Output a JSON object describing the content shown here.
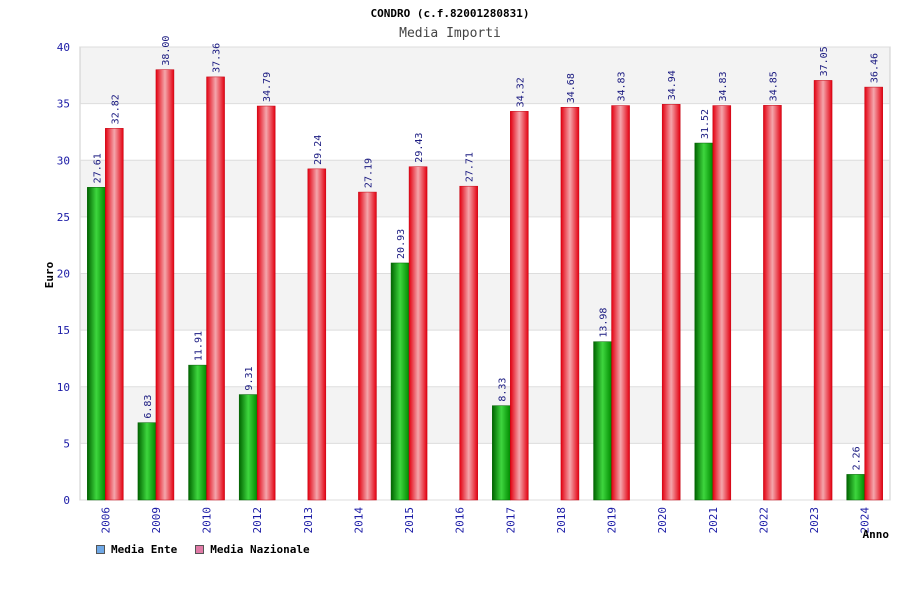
{
  "chart_data": {
    "type": "bar",
    "title": "CONDRO (c.f.82001280831)",
    "subtitle": "Media Importi",
    "xlabel": "Anno",
    "ylabel": "Euro",
    "ylim": [
      0,
      40
    ],
    "yticks": [
      0,
      5,
      10,
      15,
      20,
      25,
      30,
      35,
      40
    ],
    "grid": true,
    "legend_position": "bottom-left",
    "categories": [
      "2006",
      "2009",
      "2010",
      "2012",
      "2013",
      "2014",
      "2015",
      "2016",
      "2017",
      "2018",
      "2019",
      "2020",
      "2021",
      "2022",
      "2023",
      "2024"
    ],
    "series": [
      {
        "name": "Media Ente",
        "color": "#00a000",
        "legend_color": "#6fa8e6",
        "values": [
          27.61,
          6.83,
          11.91,
          9.31,
          null,
          null,
          20.93,
          null,
          8.33,
          null,
          13.98,
          null,
          31.52,
          null,
          null,
          2.26
        ],
        "labels": [
          "27.61",
          "6.83",
          "11.91",
          "9.31",
          "",
          "",
          "20.93",
          "",
          "8.33",
          "",
          "13.98",
          "",
          "31.52",
          "",
          "",
          "2.26"
        ]
      },
      {
        "name": "Media Nazionale",
        "color": "#e8101c",
        "legend_color": "#e07aa6",
        "values": [
          32.82,
          38.0,
          37.36,
          34.79,
          29.24,
          27.19,
          29.43,
          27.71,
          34.32,
          34.68,
          34.83,
          34.94,
          34.83,
          34.85,
          37.05,
          36.46
        ],
        "labels": [
          "32.82",
          "38.00",
          "37.36",
          "34.79",
          "29.24",
          "27.19",
          "29.43",
          "27.71",
          "34.32",
          "34.68",
          "34.83",
          "34.94",
          "34.83",
          "34.85",
          "37.05",
          "36.46"
        ]
      }
    ]
  }
}
